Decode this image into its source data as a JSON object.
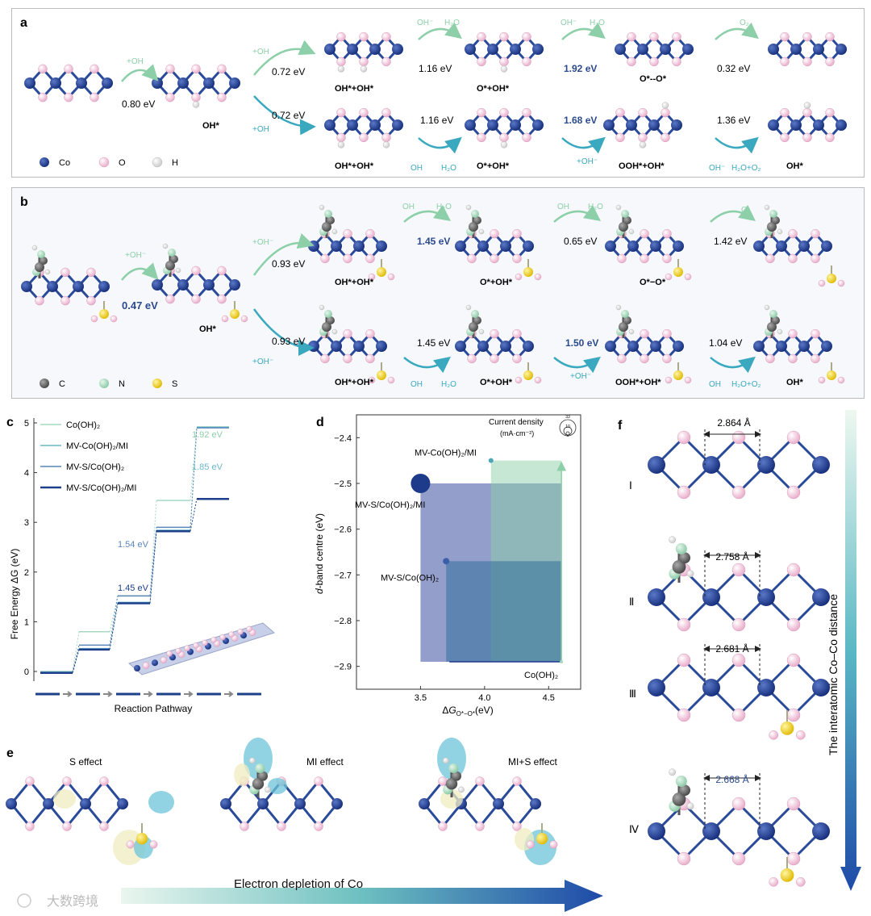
{
  "panels": {
    "a": "a",
    "b": "b",
    "c": "c",
    "d": "d",
    "e": "e",
    "f": "f"
  },
  "colors": {
    "co": "#1c3a8e",
    "o": "#f2c4dc",
    "h": "#ffffff",
    "c": "#666666",
    "n": "#a8dcc0",
    "s": "#f2d21a",
    "green": "#8ccfa8",
    "teal": "#3aa9bf",
    "blueText": "#2a4a8c"
  },
  "panel_a": {
    "legend": [
      "Co",
      "O",
      "H"
    ],
    "first_step": {
      "label": "+OH",
      "energy": "0.80 eV"
    },
    "intermediate": "OH*",
    "branch": {
      "top_label": "+OH",
      "top_energy": "0.72 eV",
      "bottom_label": "+OH",
      "bottom_energy": "0.72 eV"
    },
    "top_path": {
      "structures": [
        "OH*+OH*",
        "O*+OH*",
        "O*--O*"
      ],
      "energies": [
        "1.16 eV",
        "1.92 eV",
        "0.32 eV"
      ],
      "arrow_labels": [
        [
          "OH⁻",
          "H₂O"
        ],
        [
          "OH⁻",
          "H₂O"
        ],
        [
          "O₂"
        ]
      ]
    },
    "bottom_path": {
      "structures": [
        "OH*+OH*",
        "O*+OH*",
        "OOH*+OH*",
        "OH*"
      ],
      "energies": [
        "1.16 eV",
        "1.68 eV",
        "1.36 eV"
      ],
      "arrow_labels": [
        [
          "OH",
          "H₂O"
        ],
        [
          "+OH⁻"
        ],
        [
          "OH⁻",
          "H₂O+O₂"
        ]
      ]
    }
  },
  "panel_b": {
    "legend": [
      "C",
      "N",
      "S"
    ],
    "first_step": {
      "label": "+OH⁻",
      "energy": "0.47 eV"
    },
    "intermediate": "OH*",
    "branch": {
      "top_label": "+OH⁻",
      "top_energy": "0.93 eV",
      "bottom_label": "+OH⁻",
      "bottom_energy": "0.93 eV"
    },
    "top_path": {
      "structures": [
        "OH*+OH*",
        "O*+OH*",
        "O*−O*"
      ],
      "energies": [
        "1.45 eV",
        "0.65 eV",
        "1.42 eV"
      ],
      "arrow_labels": [
        [
          "OH",
          "H₂O"
        ],
        [
          "OH",
          "H₂O"
        ],
        [
          "O₂"
        ]
      ]
    },
    "bottom_path": {
      "structures": [
        "OH*+OH*",
        "O*+OH*",
        "OOH*+OH*",
        "OH*"
      ],
      "energies": [
        "1.45 eV",
        "1.50 eV",
        "1.04 eV"
      ],
      "arrow_labels": [
        [
          "OH",
          "H₂O"
        ],
        [
          "+OH⁻"
        ],
        [
          "OH",
          "H₂O+O₂"
        ]
      ]
    }
  },
  "chart_data": [
    {
      "type": "line",
      "panel": "c",
      "title": "",
      "xlabel": "Reaction Pathway",
      "ylabel": "Free Energy ΔG (eV)",
      "ylim": [
        0,
        5
      ],
      "yticks": [
        "0",
        "1",
        "2",
        "3",
        "4",
        "5"
      ],
      "legend": [
        "Co(OH)₂",
        "MV-Co(OH)₂/MI",
        "MV-S/Co(OH)₂",
        "MV-S/Co(OH)₂/MI"
      ],
      "series": [
        {
          "name": "Co(OH)₂",
          "color": "#a8d8c4",
          "values": [
            0,
            0.8,
            1.52,
            3.44,
            4.92
          ]
        },
        {
          "name": "MV-Co(OH)₂/MI",
          "color": "#6cb8cc",
          "values": [
            0,
            0.47,
            1.4,
            2.85,
            4.92
          ]
        },
        {
          "name": "MV-S/Co(OH)₂",
          "color": "#5a86b8",
          "values": [
            0,
            0.55,
            1.54,
            2.92,
            4.92
          ]
        },
        {
          "name": "MV-S/Co(OH)₂/MI",
          "color": "#1e3f8a",
          "values": [
            0,
            0.47,
            1.4,
            2.85,
            3.5
          ]
        }
      ],
      "annotations": [
        "1.92 eV",
        "1.85 eV",
        "1.54 eV",
        "1.45 eV"
      ]
    },
    {
      "type": "scatter",
      "panel": "d",
      "xlabel": "ΔG_O*−O* (eV)",
      "ylabel": "d-band centre (eV)",
      "xlim": [
        3.0,
        4.75
      ],
      "ylim": [
        -2.95,
        -2.35
      ],
      "xticks": [
        "3.5",
        "4.0",
        "4.5"
      ],
      "yticks": [
        "−2.4",
        "−2.5",
        "−2.6",
        "−2.7",
        "−2.8",
        "−2.9"
      ],
      "legend_title": "Current density",
      "legend_unit": "(mA·cm⁻²)",
      "legend_sizes": [
        "33",
        "10",
        "5"
      ],
      "points": [
        {
          "label": "MV-Co(OH)₂/MI",
          "x": 4.05,
          "y": -2.45,
          "color": "#4fa6b8"
        },
        {
          "label": "MV-S/Co(OH)₂/MI",
          "x": 3.5,
          "y": -2.5,
          "color": "#1e3a8a"
        },
        {
          "label": "MV-S/Co(OH)₂",
          "x": 3.7,
          "y": -2.67,
          "color": "#3a5ea8"
        },
        {
          "label": "Co(OH)₂",
          "x": 4.6,
          "y": -2.89,
          "color": "#a8d8c4"
        }
      ]
    }
  ],
  "panel_e": {
    "labels": [
      "S effect",
      "MI effect",
      "MI+S effect"
    ],
    "arrow_text": "Electron depletion of Co"
  },
  "panel_f": {
    "rows": [
      {
        "numeral": "Ⅰ",
        "distance": "2.864 Å"
      },
      {
        "numeral": "Ⅱ",
        "distance": "2.758 Å"
      },
      {
        "numeral": "Ⅲ",
        "distance": "2.681 Å"
      },
      {
        "numeral": "Ⅳ",
        "distance": "2.668 Å"
      }
    ],
    "axis_text": "The interatomic Co–Co distance"
  },
  "watermark": "大数跨境"
}
